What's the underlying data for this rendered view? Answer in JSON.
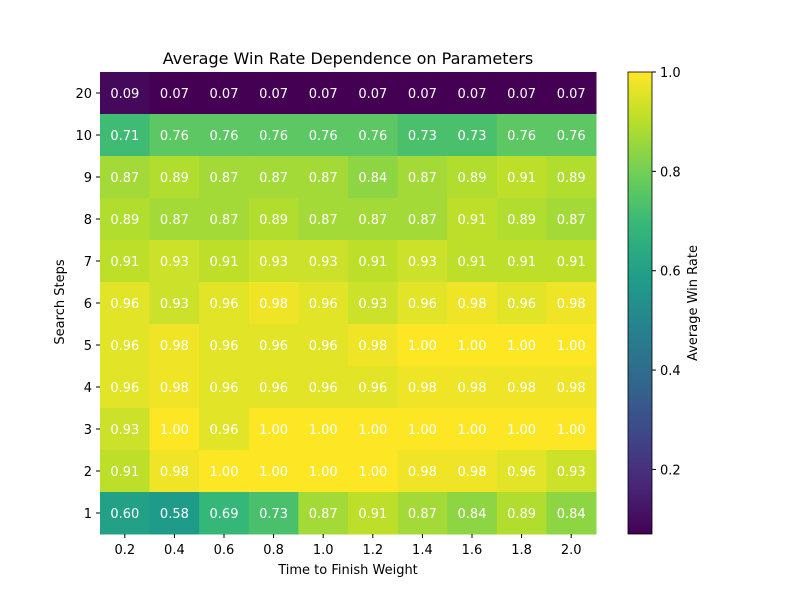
{
  "chart_data": {
    "type": "heatmap",
    "title": "Average Win Rate Dependence on Parameters",
    "xlabel": "Time to Finish Weight",
    "ylabel": "Search Steps",
    "x_categories": [
      "0.2",
      "0.4",
      "0.6",
      "0.8",
      "1.0",
      "1.2",
      "1.4",
      "1.6",
      "1.8",
      "2.0"
    ],
    "y_categories": [
      "20",
      "10",
      "9",
      "8",
      "7",
      "6",
      "5",
      "4",
      "3",
      "2",
      "1"
    ],
    "values": [
      [
        0.09,
        0.07,
        0.07,
        0.07,
        0.07,
        0.07,
        0.07,
        0.07,
        0.07,
        0.07
      ],
      [
        0.71,
        0.76,
        0.76,
        0.76,
        0.76,
        0.76,
        0.73,
        0.73,
        0.76,
        0.76
      ],
      [
        0.87,
        0.89,
        0.87,
        0.87,
        0.87,
        0.84,
        0.87,
        0.89,
        0.91,
        0.89
      ],
      [
        0.89,
        0.87,
        0.87,
        0.89,
        0.87,
        0.87,
        0.87,
        0.91,
        0.89,
        0.87
      ],
      [
        0.91,
        0.93,
        0.91,
        0.93,
        0.93,
        0.91,
        0.93,
        0.91,
        0.91,
        0.91
      ],
      [
        0.96,
        0.93,
        0.96,
        0.98,
        0.96,
        0.93,
        0.96,
        0.98,
        0.96,
        0.98
      ],
      [
        0.96,
        0.98,
        0.96,
        0.96,
        0.96,
        0.98,
        1.0,
        1.0,
        1.0,
        1.0
      ],
      [
        0.96,
        0.98,
        0.96,
        0.96,
        0.96,
        0.96,
        0.98,
        0.98,
        0.98,
        0.98
      ],
      [
        0.93,
        1.0,
        0.96,
        1.0,
        1.0,
        1.0,
        1.0,
        1.0,
        1.0,
        1.0
      ],
      [
        0.91,
        0.98,
        1.0,
        1.0,
        1.0,
        1.0,
        0.98,
        0.98,
        0.96,
        0.93
      ],
      [
        0.6,
        0.58,
        0.69,
        0.73,
        0.87,
        0.91,
        0.87,
        0.84,
        0.89,
        0.84
      ]
    ],
    "colorbar": {
      "label": "Average Win Rate",
      "colormap": "viridis",
      "range": [
        0.07,
        1.0
      ],
      "ticks": [
        "0.2",
        "0.4",
        "0.6",
        "0.8",
        "1.0"
      ]
    }
  }
}
